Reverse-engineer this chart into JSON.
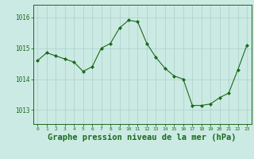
{
  "x": [
    0,
    1,
    2,
    3,
    4,
    5,
    6,
    7,
    8,
    9,
    10,
    11,
    12,
    13,
    14,
    15,
    16,
    17,
    18,
    19,
    20,
    21,
    22,
    23
  ],
  "y": [
    1014.6,
    1014.85,
    1014.75,
    1014.65,
    1014.55,
    1014.25,
    1014.4,
    1015.0,
    1015.15,
    1015.65,
    1015.9,
    1015.85,
    1015.15,
    1014.7,
    1014.35,
    1014.1,
    1014.0,
    1013.15,
    1013.15,
    1013.2,
    1013.4,
    1013.55,
    1014.3,
    1015.1
  ],
  "line_color": "#1a6b1a",
  "marker": "D",
  "marker_size": 2.0,
  "bg_color": "#cceae4",
  "grid_color": "#aacfc8",
  "xlabel": "Graphe pression niveau de la mer (hPa)",
  "xlabel_fontsize": 7.5,
  "ytick_labels": [
    "1013",
    "1014",
    "1015",
    "1016"
  ],
  "ytick_values": [
    1013,
    1014,
    1015,
    1016
  ],
  "ylim": [
    1012.55,
    1016.4
  ],
  "xlim": [
    -0.5,
    23.5
  ]
}
